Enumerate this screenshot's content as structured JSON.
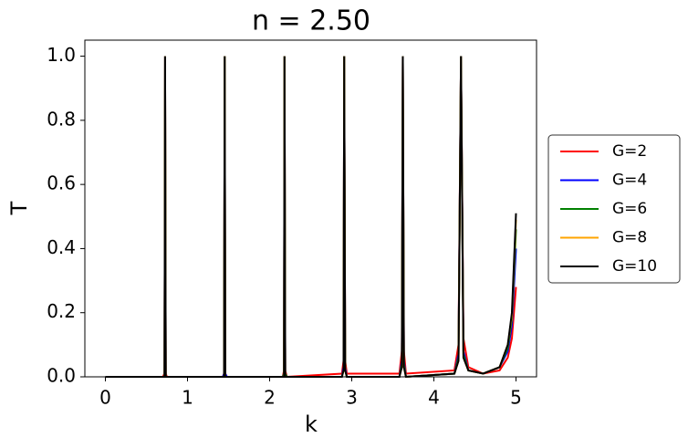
{
  "chart_data": {
    "type": "line",
    "title": "n = 2.50",
    "x_label": "k",
    "y_label": "T",
    "x": [
      0,
      0.7,
      0.72,
      0.727,
      0.735,
      0.75,
      1.43,
      1.445,
      1.453,
      1.46,
      1.48,
      2.16,
      2.175,
      2.181,
      2.19,
      2.21,
      2.88,
      2.9,
      2.908,
      2.92,
      2.94,
      3.58,
      3.61,
      3.622,
      3.635,
      3.66,
      4.25,
      4.3,
      4.33,
      4.36,
      4.42,
      4.6,
      4.8,
      4.9,
      4.95,
      5.0
    ],
    "series": [
      {
        "name": "G=2",
        "color": "#ff0000",
        "values": [
          0,
          0,
          0.01,
          1,
          0.01,
          0,
          0,
          0.01,
          1,
          0.01,
          0,
          0,
          0.02,
          1,
          0.02,
          0,
          0.01,
          0.05,
          1,
          0.05,
          0.01,
          0.01,
          0.08,
          1,
          0.08,
          0.01,
          0.02,
          0.1,
          1,
          0.12,
          0.03,
          0.01,
          0.02,
          0.06,
          0.12,
          0.28
        ]
      },
      {
        "name": "G=4",
        "color": "#0000ff",
        "values": [
          0,
          0,
          0,
          1,
          0,
          0,
          0,
          0.01,
          1,
          0.01,
          0,
          0,
          0.01,
          1,
          0.01,
          0,
          0,
          0.03,
          1,
          0.03,
          0,
          0,
          0.05,
          1,
          0.05,
          0,
          0.01,
          0.07,
          1,
          0.08,
          0.02,
          0.01,
          0.03,
          0.08,
          0.16,
          0.4
        ]
      },
      {
        "name": "G=6",
        "color": "#008000",
        "values": [
          0,
          0,
          0,
          1,
          0,
          0,
          0,
          0,
          1,
          0,
          0,
          0,
          0.01,
          1,
          0.01,
          0,
          0,
          0.02,
          1,
          0.02,
          0,
          0,
          0.04,
          1,
          0.04,
          0,
          0.01,
          0.06,
          1,
          0.07,
          0.02,
          0.01,
          0.03,
          0.09,
          0.18,
          0.46
        ]
      },
      {
        "name": "G=8",
        "color": "#ffa500",
        "values": [
          0,
          0,
          0,
          1,
          0,
          0,
          0,
          0,
          1,
          0,
          0,
          0,
          0,
          1,
          0,
          0,
          0,
          0.02,
          1,
          0.02,
          0,
          0,
          0.03,
          1,
          0.03,
          0,
          0.01,
          0.05,
          1,
          0.06,
          0.02,
          0.01,
          0.03,
          0.1,
          0.19,
          0.49
        ]
      },
      {
        "name": "G=10",
        "color": "#000000",
        "values": [
          0,
          0,
          0,
          1,
          0,
          0,
          0,
          0,
          1,
          0,
          0,
          0,
          0,
          1,
          0,
          0,
          0,
          0.02,
          1,
          0.02,
          0,
          0,
          0.03,
          1,
          0.03,
          0,
          0.01,
          0.05,
          1,
          0.06,
          0.02,
          0.01,
          0.03,
          0.1,
          0.2,
          0.51
        ]
      }
    ],
    "xlim": [
      -0.25,
      5.25
    ],
    "ylim": [
      0,
      1.05
    ],
    "xticks": [
      0,
      1,
      2,
      3,
      4,
      5
    ],
    "yticks": [
      {
        "value": 0,
        "label": "0.0"
      },
      {
        "value": 0.2,
        "label": "0.2"
      },
      {
        "value": 0.4,
        "label": "0.4"
      },
      {
        "value": 0.6,
        "label": "0.6"
      },
      {
        "value": 0.8,
        "label": "0.8"
      },
      {
        "value": 1,
        "label": "1.0"
      }
    ],
    "grid": false,
    "legend": "outside-right"
  }
}
